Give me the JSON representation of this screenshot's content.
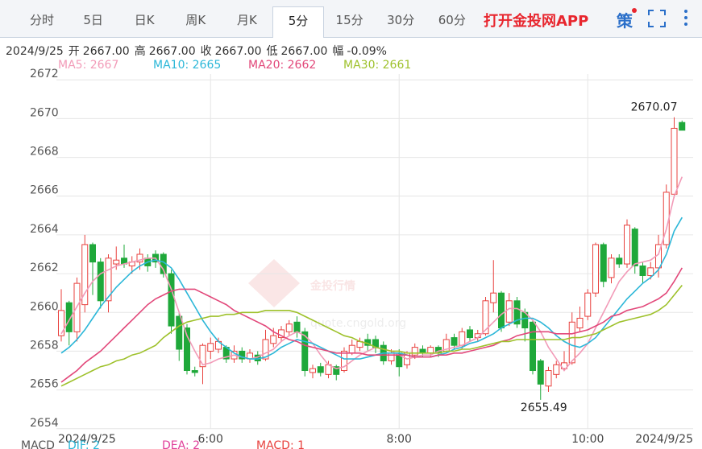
{
  "tabs": [
    "分时",
    "5日",
    "日K",
    "周K",
    "月K",
    "5分",
    "15分",
    "30分",
    "60分"
  ],
  "active_tab": 5,
  "app_link": "打开金投网APP",
  "strategy_icon": "策",
  "info": {
    "date": "2024/9/25",
    "items": [
      {
        "label": "开",
        "value": "2667.00"
      },
      {
        "label": "高",
        "value": "2667.00"
      },
      {
        "label": "收",
        "value": "2667.00"
      },
      {
        "label": "低",
        "value": "2667.00"
      },
      {
        "label": "幅",
        "value": "-0.09%"
      }
    ]
  },
  "watermark": {
    "brand": "金投行情",
    "url": "quote.cngold.org"
  },
  "macd": {
    "title": "MACD",
    "items": [
      {
        "name": "DIF: 2",
        "color": "#2cb7d8"
      },
      {
        "name": "DEA: 2",
        "color": "#e0409a"
      },
      {
        "name": "MACD: 1",
        "color": "#e8413e"
      }
    ]
  },
  "chart_data": {
    "type": "candlestick",
    "up_color": "#e8413e",
    "down_color": "#1fa83a",
    "ylim": [
      2653.7,
      2672.3
    ],
    "yticks": [
      2654,
      2656,
      2658,
      2660,
      2662,
      2664,
      2666,
      2668,
      2670,
      2672
    ],
    "grid": true,
    "categories": [
      "2024/9/25",
      null,
      null,
      null,
      null,
      null,
      null,
      null,
      null,
      null,
      null,
      null,
      null,
      null,
      null,
      null,
      null,
      null,
      null,
      "6:00",
      null,
      null,
      null,
      null,
      null,
      null,
      null,
      null,
      null,
      null,
      null,
      null,
      null,
      null,
      null,
      null,
      null,
      null,
      null,
      null,
      null,
      null,
      null,
      "8:00",
      null,
      null,
      null,
      null,
      null,
      null,
      null,
      null,
      null,
      null,
      null,
      null,
      null,
      null,
      null,
      null,
      null,
      null,
      null,
      null,
      null,
      null,
      null,
      "10:00",
      null,
      null,
      null,
      null,
      null,
      null,
      null,
      null,
      null,
      null,
      null,
      "2024/9/25"
    ],
    "ohlc": {
      "open": [
        2658.8,
        2660.5,
        2659.0,
        2660.4,
        2663.5,
        2662.6,
        2660.6,
        2662.5,
        2662.8,
        2662.4,
        2662.6,
        2662.8,
        2663.0,
        2663.0,
        2662.0,
        2659.8,
        2659.2,
        2657.0,
        2657.2,
        2658.0,
        2658.1,
        2658.2,
        2657.6,
        2658.0,
        2657.6,
        2657.8,
        2657.6,
        2658.4,
        2658.7,
        2659.0,
        2659.5,
        2659.0,
        2656.9,
        2657.2,
        2656.8,
        2657.2,
        2657.0,
        2657.9,
        2658.2,
        2658.6,
        2658.6,
        2658.3,
        2657.5,
        2657.9,
        2657.3,
        2657.8,
        2658.1,
        2657.9,
        2658.2,
        2658.0,
        2658.7,
        2658.3,
        2659.1,
        2658.7,
        2658.9,
        2660.5,
        2661.0,
        2659.5,
        2660.6,
        2660.0,
        2659.5,
        2657.5,
        2656.2,
        2656.8,
        2657.1,
        2657.4,
        2659.2,
        2659.8,
        2661.0,
        2663.5,
        2661.8,
        2662.8,
        2662.5,
        2664.3,
        2662.4,
        2661.9,
        2662.3,
        2663.5,
        2666.1,
        2669.8
      ],
      "high": [
        2661.2,
        2660.6,
        2661.8,
        2664.0,
        2663.6,
        2662.8,
        2663.0,
        2663.4,
        2663.5,
        2662.9,
        2663.3,
        2663.0,
        2663.2,
        2663.1,
        2662.2,
        2660.0,
        2659.4,
        2657.2,
        2658.4,
        2658.7,
        2658.7,
        2658.3,
        2658.3,
        2658.2,
        2658.1,
        2658.0,
        2659.1,
        2659.2,
        2659.3,
        2659.6,
        2659.8,
        2659.2,
        2657.3,
        2657.4,
        2657.5,
        2657.3,
        2658.2,
        2658.6,
        2658.7,
        2658.9,
        2658.8,
        2658.5,
        2658.1,
        2658.1,
        2658.0,
        2658.4,
        2658.3,
        2658.3,
        2658.3,
        2658.9,
        2658.9,
        2659.2,
        2659.3,
        2659.1,
        2660.8,
        2662.7,
        2661.1,
        2661.0,
        2660.8,
        2660.2,
        2659.6,
        2657.6,
        2657.2,
        2657.5,
        2658.0,
        2660.0,
        2660.3,
        2661.2,
        2663.6,
        2663.6,
        2663.0,
        2663.0,
        2664.8,
        2664.4,
        2662.6,
        2662.6,
        2664.0,
        2666.6,
        2670.07,
        2669.9
      ],
      "low": [
        2658.5,
        2658.3,
        2658.5,
        2660.0,
        2660.9,
        2660.2,
        2660.0,
        2662.2,
        2662.3,
        2662.0,
        2662.2,
        2662.1,
        2662.3,
        2661.8,
        2658.9,
        2657.5,
        2656.8,
        2656.7,
        2656.3,
        2657.6,
        2657.9,
        2657.4,
        2657.4,
        2657.4,
        2657.4,
        2657.3,
        2657.5,
        2658.2,
        2658.5,
        2658.8,
        2658.7,
        2656.7,
        2656.6,
        2656.7,
        2656.6,
        2656.5,
        2656.9,
        2657.8,
        2658.0,
        2658.0,
        2657.9,
        2657.3,
        2657.3,
        2656.7,
        2657.1,
        2657.6,
        2657.7,
        2657.7,
        2657.7,
        2657.9,
        2658.1,
        2658.1,
        2658.5,
        2658.5,
        2658.8,
        2660.0,
        2659.0,
        2659.3,
        2659.2,
        2658.5,
        2656.8,
        2655.49,
        2655.9,
        2656.6,
        2657.0,
        2657.3,
        2659.0,
        2659.6,
        2660.8,
        2661.3,
        2661.5,
        2662.3,
        2662.3,
        2662.0,
        2661.5,
        2661.7,
        2661.8,
        2663.3,
        2665.9,
        2669.4
      ],
      "close": [
        2660.1,
        2659.0,
        2661.5,
        2663.5,
        2662.6,
        2660.6,
        2662.8,
        2662.7,
        2662.5,
        2662.6,
        2663.0,
        2662.4,
        2662.6,
        2662.0,
        2659.3,
        2658.1,
        2657.0,
        2656.9,
        2658.3,
        2658.4,
        2658.5,
        2657.6,
        2658.0,
        2657.6,
        2657.9,
        2657.5,
        2658.6,
        2658.8,
        2659.1,
        2659.4,
        2659.0,
        2657.0,
        2657.1,
        2656.9,
        2657.3,
        2656.8,
        2658.0,
        2658.3,
        2658.5,
        2658.3,
        2658.2,
        2657.5,
        2657.9,
        2657.2,
        2657.9,
        2658.2,
        2657.9,
        2658.2,
        2657.9,
        2658.6,
        2658.3,
        2659.0,
        2658.7,
        2658.9,
        2660.6,
        2661.0,
        2659.2,
        2660.6,
        2659.4,
        2659.2,
        2657.0,
        2656.3,
        2657.0,
        2657.3,
        2657.4,
        2659.5,
        2659.7,
        2661.0,
        2663.5,
        2661.6,
        2662.8,
        2662.5,
        2664.5,
        2662.4,
        2661.9,
        2662.3,
        2663.5,
        2666.2,
        2669.5,
        2669.4
      ]
    },
    "lines": [
      {
        "name": "MA5: 2667",
        "color": "#f29bb8",
        "values": [
          2658.9,
          2659.6,
          2660.3,
          2661.0,
          2661.6,
          2662.0,
          2662.2,
          2662.4,
          2662.5,
          2662.6,
          2662.7,
          2662.8,
          2662.8,
          2662.2,
          2661.2,
          2660.0,
          2658.8,
          2658.0,
          2657.3,
          2657.4,
          2657.6,
          2657.7,
          2657.8,
          2657.7,
          2657.6,
          2657.7,
          2657.9,
          2658.1,
          2658.5,
          2658.8,
          2659.0,
          2658.8,
          2658.4,
          2657.8,
          2657.3,
          2657.1,
          2657.2,
          2657.5,
          2657.8,
          2658.0,
          2658.2,
          2658.1,
          2658.0,
          2657.8,
          2657.6,
          2657.7,
          2657.8,
          2657.8,
          2658.0,
          2658.1,
          2658.2,
          2658.3,
          2658.5,
          2658.7,
          2659.1,
          2659.5,
          2659.9,
          2660.2,
          2660.2,
          2660.0,
          2659.6,
          2659.0,
          2658.2,
          2657.6,
          2657.0,
          2657.5,
          2657.9,
          2658.4,
          2659.2,
          2660.0,
          2660.8,
          2661.6,
          2662.1,
          2662.5,
          2662.6,
          2662.7,
          2663.0,
          2664.3,
          2666.0,
          2667.0
        ]
      },
      {
        "name": "MA10: 2665",
        "color": "#2cb7d8",
        "values": [
          2657.9,
          2658.2,
          2658.6,
          2659.1,
          2659.7,
          2660.3,
          2660.8,
          2661.3,
          2661.7,
          2662.1,
          2662.4,
          2662.6,
          2662.7,
          2662.6,
          2662.3,
          2661.7,
          2661.0,
          2660.3,
          2659.6,
          2659.0,
          2658.5,
          2658.2,
          2657.9,
          2657.7,
          2657.6,
          2657.6,
          2657.7,
          2657.9,
          2658.2,
          2658.4,
          2658.6,
          2658.5,
          2658.4,
          2658.2,
          2658.0,
          2657.8,
          2657.6,
          2657.6,
          2657.6,
          2657.7,
          2657.8,
          2657.9,
          2657.9,
          2657.9,
          2657.8,
          2657.7,
          2657.7,
          2657.7,
          2657.8,
          2657.9,
          2658.1,
          2658.2,
          2658.4,
          2658.5,
          2658.7,
          2658.9,
          2659.2,
          2659.4,
          2659.6,
          2659.7,
          2659.7,
          2659.5,
          2659.2,
          2658.8,
          2658.5,
          2658.3,
          2658.2,
          2658.4,
          2658.7,
          2659.2,
          2659.7,
          2660.2,
          2660.7,
          2661.1,
          2661.5,
          2661.8,
          2662.2,
          2663.0,
          2664.2,
          2664.9
        ]
      },
      {
        "name": "MA20: 2662",
        "color": "#e2487a",
        "values": [
          2656.4,
          2656.7,
          2657.0,
          2657.4,
          2657.7,
          2658.0,
          2658.4,
          2658.8,
          2659.2,
          2659.6,
          2660.0,
          2660.4,
          2660.7,
          2660.9,
          2661.1,
          2661.2,
          2661.2,
          2661.2,
          2661.0,
          2660.8,
          2660.6,
          2660.4,
          2660.1,
          2659.9,
          2659.7,
          2659.5,
          2659.3,
          2659.0,
          2658.8,
          2658.6,
          2658.5,
          2658.3,
          2658.2,
          2658.1,
          2658.0,
          2657.9,
          2657.9,
          2657.9,
          2657.9,
          2657.8,
          2657.8,
          2657.8,
          2657.8,
          2657.8,
          2657.8,
          2657.7,
          2657.7,
          2657.7,
          2657.8,
          2657.8,
          2657.9,
          2657.9,
          2658.0,
          2658.1,
          2658.2,
          2658.3,
          2658.5,
          2658.6,
          2658.8,
          2658.9,
          2659.0,
          2659.0,
          2659.0,
          2658.9,
          2658.9,
          2658.9,
          2659.0,
          2659.1,
          2659.3,
          2659.5,
          2659.8,
          2659.9,
          2660.1,
          2660.2,
          2660.3,
          2660.5,
          2660.7,
          2661.0,
          2661.6,
          2662.3
        ]
      },
      {
        "name": "MA30: 2661",
        "color": "#9ec12b",
        "values": [
          2656.2,
          2656.4,
          2656.6,
          2656.8,
          2657.0,
          2657.2,
          2657.3,
          2657.5,
          2657.6,
          2657.8,
          2657.9,
          2658.1,
          2658.3,
          2658.7,
          2659.0,
          2659.3,
          2659.5,
          2659.6,
          2659.7,
          2659.8,
          2659.8,
          2659.9,
          2659.9,
          2660.0,
          2660.0,
          2660.0,
          2660.1,
          2660.1,
          2660.1,
          2660.1,
          2660.0,
          2659.8,
          2659.6,
          2659.4,
          2659.2,
          2659.0,
          2658.8,
          2658.7,
          2658.5,
          2658.4,
          2658.2,
          2658.1,
          2658.0,
          2658.0,
          2657.9,
          2657.9,
          2657.9,
          2657.9,
          2657.9,
          2658.0,
          2658.0,
          2658.1,
          2658.1,
          2658.2,
          2658.3,
          2658.4,
          2658.5,
          2658.5,
          2658.6,
          2658.6,
          2658.6,
          2658.6,
          2658.6,
          2658.6,
          2658.6,
          2658.7,
          2658.7,
          2658.8,
          2658.9,
          2659.1,
          2659.3,
          2659.5,
          2659.6,
          2659.7,
          2659.8,
          2659.9,
          2660.1,
          2660.4,
          2660.9,
          2661.4
        ]
      }
    ]
  }
}
